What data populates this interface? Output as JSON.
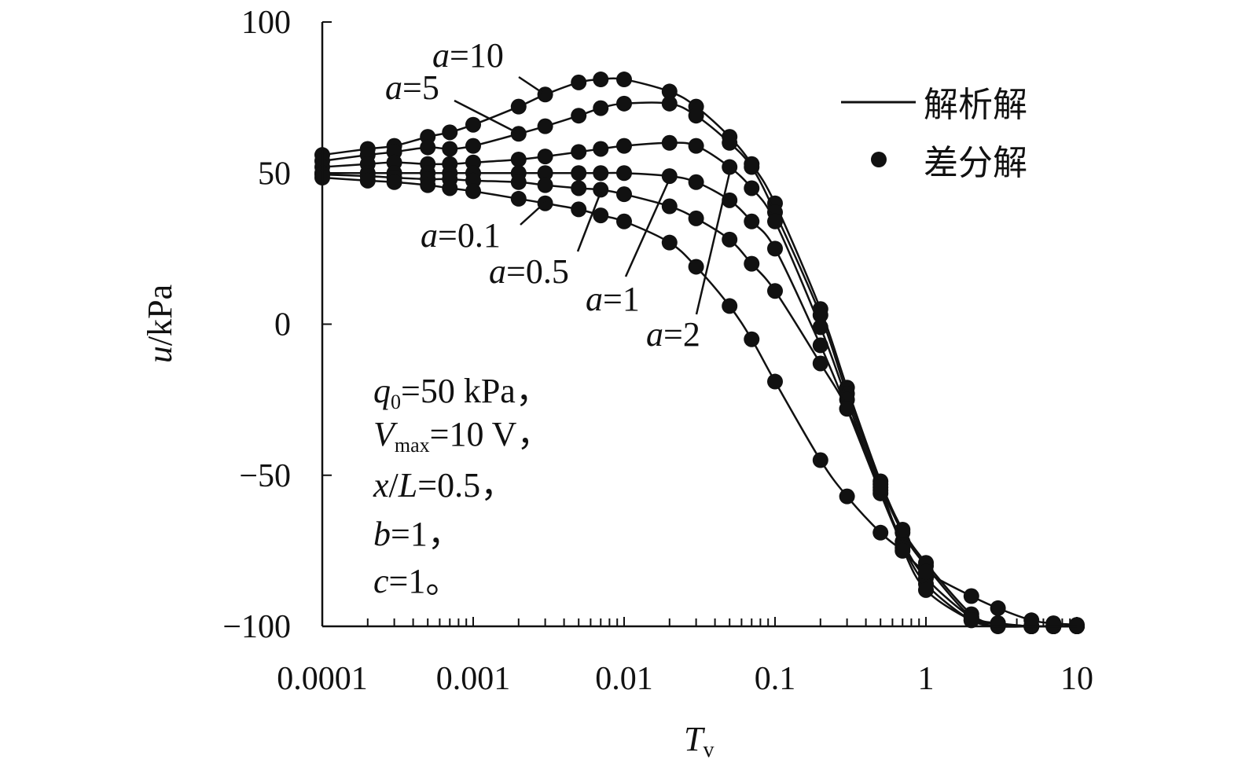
{
  "chart_data": {
    "type": "line",
    "xscale": "log",
    "xlabel": {
      "main": "T",
      "sub": "v"
    },
    "ylabel": {
      "var": "u",
      "unit": "/kPa"
    },
    "xlim": [
      0.0001,
      10
    ],
    "ylim": [
      -100,
      100
    ],
    "xticks": [
      0.0001,
      0.001,
      0.01,
      0.1,
      1,
      10
    ],
    "xtick_labels": [
      "0.0001",
      "0.001",
      "0.01",
      "0.1",
      "1",
      "10"
    ],
    "yticks": [
      100,
      50,
      0,
      -50,
      -100
    ],
    "ytick_labels": [
      "100",
      "50",
      "0",
      "−50",
      "−100"
    ],
    "legend": {
      "placement": "top-right",
      "line_label": "解析解",
      "dot_label": "差分解"
    },
    "x": [
      0.0001,
      0.0002,
      0.0003,
      0.0005,
      0.0007,
      0.001,
      0.002,
      0.003,
      0.005,
      0.007,
      0.01,
      0.02,
      0.03,
      0.05,
      0.07,
      0.1,
      0.2,
      0.3,
      0.5,
      0.7,
      1,
      2,
      3,
      5,
      7,
      10
    ],
    "series": [
      {
        "name": "a=10",
        "label_var": "a",
        "label_val": "=10",
        "values": [
          56,
          58,
          59,
          62,
          63.5,
          66,
          72,
          76,
          80,
          81,
          81,
          77,
          72,
          62,
          53,
          40,
          5,
          -21,
          -52,
          -68,
          -79,
          -96,
          -99,
          -100,
          -100,
          -100
        ]
      },
      {
        "name": "a=5",
        "label_var": "a",
        "label_val": "=5",
        "values": [
          54,
          56,
          57,
          58.5,
          58,
          59,
          63,
          65.5,
          69,
          71.5,
          73,
          73,
          69,
          60,
          52,
          37,
          3,
          -23,
          -53,
          -69,
          -80,
          -97,
          -99,
          -100,
          -100,
          -100
        ]
      },
      {
        "name": "a=2",
        "label_var": "a",
        "label_val": "=2",
        "values": [
          52,
          53,
          53.5,
          53,
          53,
          53.5,
          54.5,
          55.5,
          57,
          58,
          59,
          60,
          59,
          52,
          45,
          34,
          -1,
          -25,
          -55,
          -72,
          -84,
          -97,
          -99,
          -100,
          -100,
          -100
        ]
      },
      {
        "name": "a=1",
        "label_var": "a",
        "label_val": "=1",
        "values": [
          50,
          50,
          50,
          50,
          50,
          50,
          50,
          50,
          50,
          50,
          50,
          49,
          47,
          41,
          34,
          25,
          -7,
          -28,
          -56,
          -73,
          -86,
          -98,
          -99,
          -100,
          -100,
          -100
        ]
      },
      {
        "name": "a=0.5",
        "label_var": "a",
        "label_val": "=0.5",
        "values": [
          49.5,
          49,
          48.5,
          48,
          48,
          47.5,
          47,
          46,
          45,
          44.5,
          43,
          39,
          35,
          28,
          20,
          11,
          -13,
          -28,
          -54,
          -74,
          -88,
          -98,
          -100,
          -100,
          -100,
          -100
        ]
      },
      {
        "name": "a=0.1",
        "label_var": "a",
        "label_val": "=0.1",
        "values": [
          48.5,
          47.5,
          47,
          46,
          45,
          44,
          41.5,
          40,
          38,
          36,
          34,
          27,
          19,
          6,
          -5,
          -19,
          -45,
          -57,
          -69,
          -75,
          -82,
          -90,
          -94,
          -98,
          -99,
          -99.5
        ]
      }
    ],
    "annotation": [
      {
        "var": "q",
        "sub": "0",
        "rest": "=50 kPa，"
      },
      {
        "var": "V",
        "sub": "max",
        "rest": "=10 V，"
      },
      {
        "var": "x",
        "sub": "",
        "rest": "/",
        "var2": "L",
        "rest2": "=0.5，"
      },
      {
        "var": "b",
        "sub": "",
        "rest": "=1，"
      },
      {
        "var": "c",
        "sub": "",
        "rest": "=1。"
      }
    ]
  }
}
